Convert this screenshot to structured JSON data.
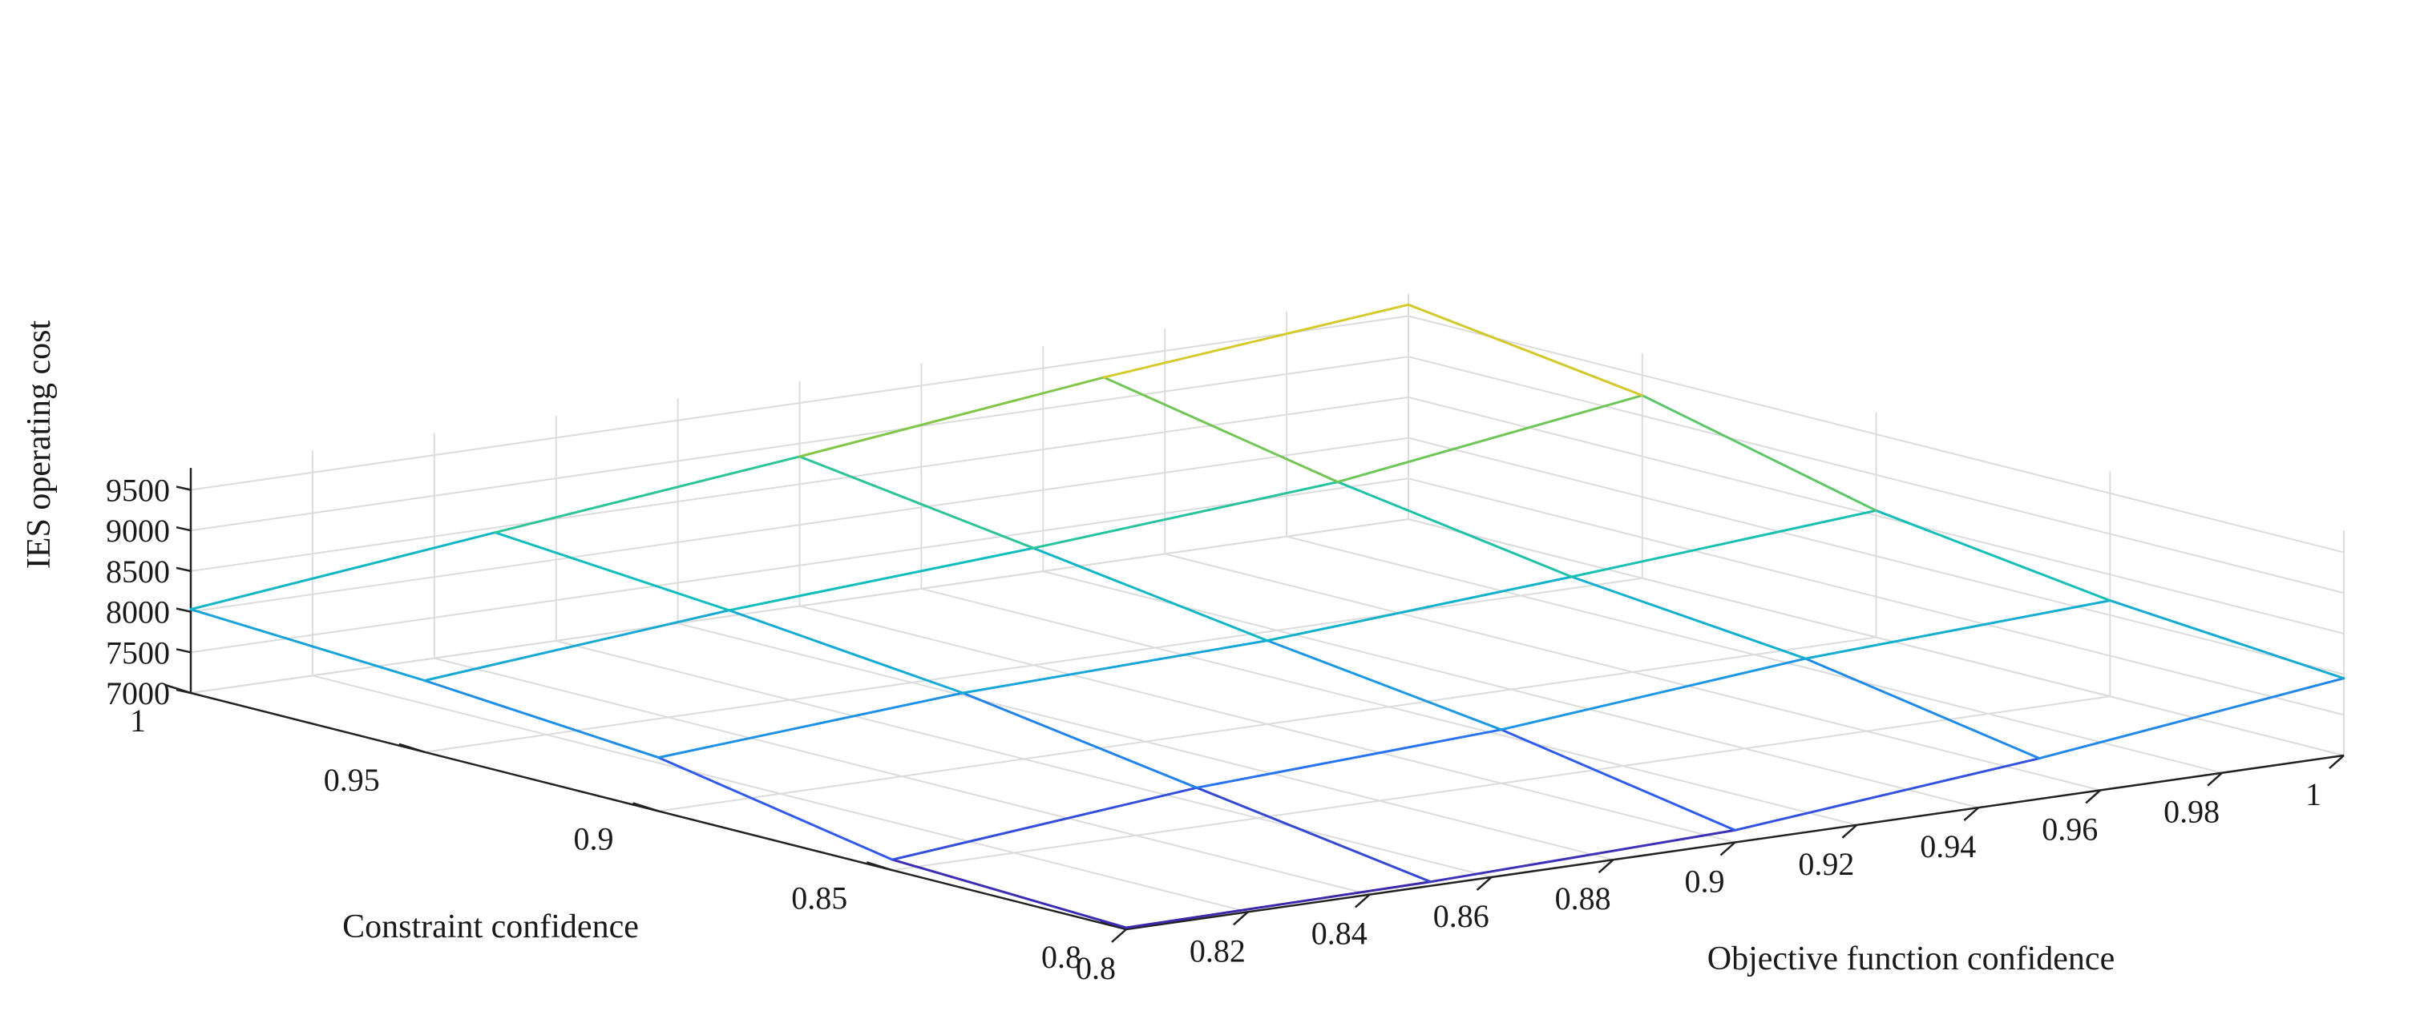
{
  "chart_data": {
    "type": "mesh3d",
    "xlabel": "Objective function confidence",
    "ylabel": "Constraint confidence",
    "zlabel": "IES operating cost",
    "x": [
      0.8,
      0.85,
      0.9,
      0.95,
      1.0
    ],
    "y": [
      0.8,
      0.85,
      0.9,
      0.95,
      1.0
    ],
    "z": [
      [
        7020,
        7050,
        7150,
        7500,
        7950
      ],
      [
        7130,
        7480,
        7660,
        8000,
        8180
      ],
      [
        7660,
        7920,
        8030,
        8280,
        8560
      ],
      [
        7880,
        8210,
        8440,
        8720,
        9250
      ],
      [
        8030,
        8440,
        8840,
        9280,
        9640
      ]
    ],
    "xlim": [
      0.8,
      1.0
    ],
    "ylim": [
      0.8,
      1.0
    ],
    "zlim": [
      7000,
      9500
    ],
    "xticks": [
      "0.8",
      "0.82",
      "0.84",
      "0.86",
      "0.88",
      "0.9",
      "0.92",
      "0.94",
      "0.96",
      "0.98",
      "1"
    ],
    "yticks": [
      "0.8",
      "0.85",
      "0.9",
      "0.95",
      "1"
    ],
    "zticks": [
      "7000",
      "7500",
      "8000",
      "8500",
      "9000",
      "9500"
    ],
    "grid": true,
    "colormap": [
      "#3e26a8",
      "#2d63f5",
      "#1a9fe0",
      "#10bdbe",
      "#38c788",
      "#a5c528",
      "#f9cc2f"
    ]
  }
}
